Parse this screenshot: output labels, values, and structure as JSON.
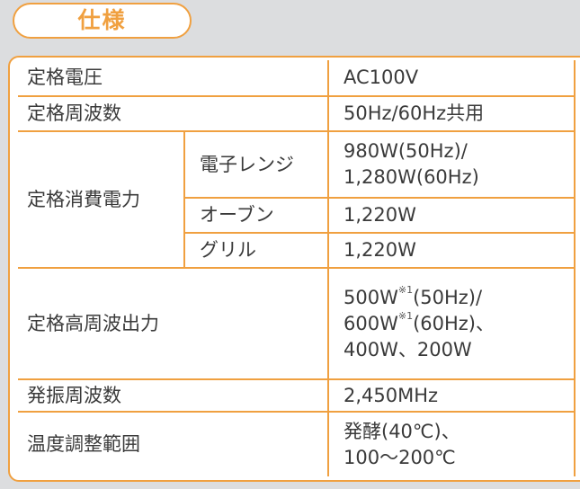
{
  "title": "仕様",
  "rows": {
    "voltage": {
      "label": "定格電圧",
      "value": "AC100V"
    },
    "frequency": {
      "label": "定格周波数",
      "value": "50Hz/60Hz共用"
    },
    "power": {
      "label": "定格消費電力",
      "microwave": {
        "label": "電子レンジ",
        "line1": "980W(50Hz)/",
        "line2": "1,280W(60Hz)"
      },
      "oven": {
        "label": "オーブン",
        "value": "1,220W"
      },
      "grill": {
        "label": "グリル",
        "value": "1,220W"
      }
    },
    "hf_output": {
      "label": "定格高周波出力",
      "line1_a": "500W",
      "note": "※1",
      "line1_b": "(50Hz)/",
      "line2_a": "600W",
      "line2_b": "(60Hz)、",
      "line3": "400W、200W"
    },
    "osc": {
      "label": "発振周波数",
      "value": "2,450MHz"
    },
    "temp": {
      "label": "温度調整範囲",
      "line1": "発酵(40℃)、",
      "line2": "100〜200℃"
    }
  }
}
